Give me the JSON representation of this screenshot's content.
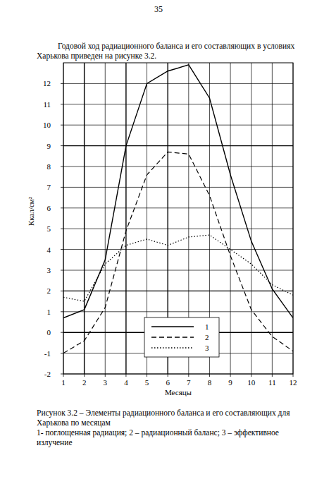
{
  "page_number": "35",
  "paragraph": "Годовой ход радиационного баланса и его составляющих в условиях Харькова приведен на рисунке 3.2.",
  "caption": "Рисунок 3.2 – Элементы радиационного баланса и его составляющих для Харькова по месяцам",
  "caption_legend": "1- поглощенная радиация; 2 – радиационный баланс; 3 – эффективное излучение",
  "chart_data": {
    "type": "line",
    "x_label": "Месяцы",
    "y_label": "Ккал/см²",
    "x": [
      1,
      2,
      3,
      4,
      5,
      6,
      7,
      8,
      9,
      10,
      11,
      12
    ],
    "xlim": [
      1,
      12
    ],
    "xticks": [
      1,
      2,
      3,
      4,
      5,
      6,
      7,
      8,
      9,
      10,
      11,
      12
    ],
    "ylim": [
      -2,
      13
    ],
    "yticks": [
      -2,
      -1,
      0,
      1,
      2,
      3,
      4,
      5,
      6,
      7,
      8,
      9,
      10,
      11,
      12
    ],
    "grid": true,
    "legend": "bottom",
    "series": [
      {
        "name": "1",
        "color": "#000000",
        "line_style": "solid",
        "values": [
          0.7,
          1.1,
          3.5,
          9.0,
          12.0,
          12.6,
          12.9,
          11.3,
          7.6,
          4.4,
          2.1,
          0.7
        ]
      },
      {
        "name": "2",
        "color": "#000000",
        "line_style": "dashed",
        "values": [
          -1.0,
          -0.4,
          1.2,
          4.9,
          7.6,
          8.7,
          8.6,
          6.6,
          3.7,
          1.1,
          -0.2,
          -0.9
        ]
      },
      {
        "name": "3",
        "color": "#000000",
        "line_style": "dotted",
        "values": [
          1.7,
          1.5,
          3.3,
          4.2,
          4.5,
          4.2,
          4.6,
          4.7,
          4.0,
          3.3,
          2.3,
          1.8
        ]
      }
    ]
  }
}
